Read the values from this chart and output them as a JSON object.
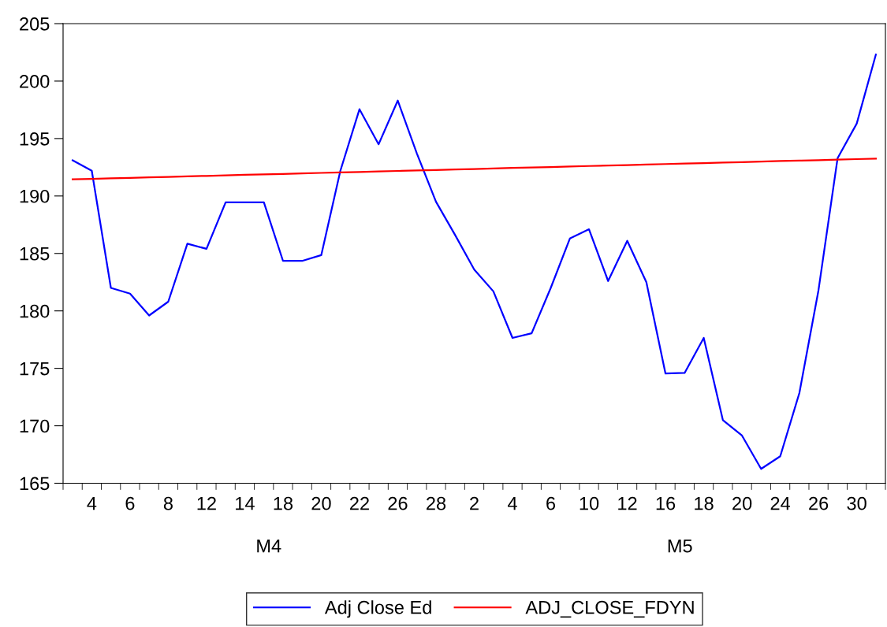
{
  "chart_data": {
    "type": "line",
    "categories": [
      null,
      "4",
      null,
      "6",
      null,
      "8",
      null,
      "12",
      null,
      "14",
      null,
      "18",
      null,
      "20",
      null,
      "22",
      null,
      "26",
      null,
      "28",
      null,
      "2",
      null,
      "4",
      null,
      "6",
      null,
      "10",
      null,
      "12",
      null,
      "16",
      null,
      "18",
      null,
      "20",
      null,
      "24",
      null,
      "26",
      null,
      "30",
      null
    ],
    "series": [
      {
        "name": "Adj Close Ed",
        "color": "#0000ff",
        "values": [
          193.1,
          192.2,
          182.0,
          181.5,
          179.6,
          180.8,
          185.85,
          185.4,
          189.45,
          189.45,
          189.45,
          184.35,
          184.35,
          184.85,
          192.2,
          197.55,
          194.5,
          198.3,
          193.7,
          189.5,
          186.6,
          183.6,
          181.7,
          177.65,
          178.05,
          182.0,
          186.3,
          187.1,
          182.6,
          186.1,
          182.5,
          174.55,
          174.6,
          177.65,
          170.5,
          169.15,
          166.25,
          167.35,
          172.85,
          181.8,
          193.3,
          196.3,
          202.3
        ]
      },
      {
        "name": "ADJ_CLOSE_FDYN",
        "color": "#ff0000",
        "values": [
          191.45,
          191.49,
          191.54,
          191.58,
          191.62,
          191.66,
          191.71,
          191.75,
          191.79,
          191.84,
          191.88,
          191.92,
          191.96,
          192.01,
          192.05,
          192.09,
          192.14,
          192.18,
          192.22,
          192.26,
          192.31,
          192.35,
          192.39,
          192.44,
          192.48,
          192.52,
          192.56,
          192.61,
          192.65,
          192.69,
          192.74,
          192.78,
          192.82,
          192.86,
          192.91,
          192.95,
          192.99,
          193.04,
          193.08,
          193.12,
          193.16,
          193.21,
          193.25
        ]
      }
    ],
    "ylim": [
      165,
      205
    ],
    "yticks": [
      165,
      170,
      175,
      180,
      185,
      190,
      195,
      200,
      205
    ],
    "annotations": [
      "M4",
      "M5"
    ],
    "grid": false,
    "legend": "bottom"
  }
}
